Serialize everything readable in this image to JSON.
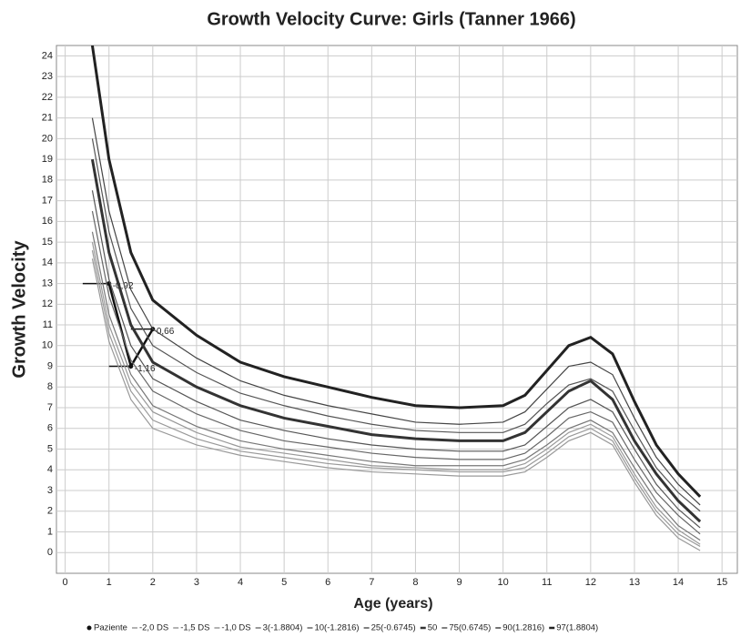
{
  "chart_data": {
    "type": "line",
    "title": "Growth Velocity Curve: Girls (Tanner 1966)",
    "x_label": "Age (years)",
    "y_label": "Growth Velocity",
    "xlim": [
      -0.2,
      15.35
    ],
    "ylim": [
      -1,
      24.5
    ],
    "xticks": [
      0,
      1,
      2,
      3,
      4,
      5,
      6,
      7,
      8,
      9,
      10,
      11,
      12,
      13,
      14,
      15
    ],
    "yticks": [
      0,
      1,
      2,
      3,
      4,
      5,
      6,
      7,
      8,
      9,
      10,
      11,
      12,
      13,
      14,
      15,
      16,
      17,
      18,
      19,
      20,
      21,
      22,
      23,
      24
    ],
    "grid": true,
    "x": [
      0.62,
      1,
      1.5,
      2,
      3,
      4,
      5,
      6,
      7,
      8,
      9,
      10,
      10.5,
      11,
      11.5,
      12,
      12.5,
      13,
      13.5,
      14,
      14.5
    ],
    "series": [
      {
        "name": "Paziente",
        "color": "#111",
        "width": 2.5,
        "x": [
          1.0,
          1.5,
          2.0
        ],
        "x_from": [
          0.4,
          1.0,
          1.5
        ],
        "values": [
          13,
          9,
          10.8
        ],
        "point_labels": [
          "-0,92",
          "-1,16",
          "0,66"
        ]
      },
      {
        "name": "-2,0 DS",
        "color": "#999",
        "width": 1.2,
        "values": [
          14.2,
          10.2,
          7.4,
          6,
          5.2,
          4.7,
          4.4,
          4.1,
          3.9,
          3.8,
          3.7,
          3.7,
          3.9,
          4.6,
          5.4,
          5.8,
          5.2,
          3.4,
          1.8,
          0.7,
          0.1
        ]
      },
      {
        "name": "-1,5 DS",
        "color": "#999",
        "width": 1.2,
        "values": [
          14.6,
          10.6,
          7.8,
          6.4,
          5.5,
          4.9,
          4.6,
          4.3,
          4.1,
          4,
          3.9,
          3.9,
          4.1,
          4.8,
          5.6,
          6.0,
          5.4,
          3.6,
          2,
          0.9,
          0.3
        ]
      },
      {
        "name": "-1,0 DS",
        "color": "#999",
        "width": 1.2,
        "values": [
          15,
          11,
          8.2,
          6.8,
          5.8,
          5.1,
          4.8,
          4.5,
          4.2,
          4.1,
          4,
          4,
          4.3,
          5,
          5.8,
          6.2,
          5.6,
          3.8,
          2.2,
          1.1,
          0.4
        ]
      },
      {
        "name": "3(-1.8804)",
        "color": "#777",
        "width": 1.2,
        "values": [
          15.5,
          11.5,
          8.6,
          7.1,
          6.1,
          5.4,
          5,
          4.7,
          4.4,
          4.2,
          4.2,
          4.2,
          4.5,
          5.2,
          6,
          6.4,
          5.8,
          4.1,
          2.5,
          1.3,
          0.6
        ]
      },
      {
        "name": "10(-1.2816)",
        "color": "#666",
        "width": 1.2,
        "values": [
          16.5,
          12.4,
          9.3,
          7.8,
          6.7,
          5.9,
          5.4,
          5.1,
          4.8,
          4.6,
          4.5,
          4.5,
          4.8,
          5.6,
          6.5,
          6.8,
          6.3,
          4.5,
          2.9,
          1.8,
          0.9
        ]
      },
      {
        "name": "25(-0.6745)",
        "color": "#555",
        "width": 1.2,
        "values": [
          17.5,
          13.2,
          10,
          8.4,
          7.3,
          6.4,
          5.9,
          5.5,
          5.2,
          5,
          4.9,
          4.9,
          5.2,
          6.1,
          7,
          7.4,
          6.8,
          5,
          3.3,
          2.1,
          1.2
        ]
      },
      {
        "name": "50",
        "color": "#333",
        "width": 3,
        "values": [
          19,
          14.5,
          11,
          9.2,
          8,
          7.1,
          6.5,
          6.1,
          5.7,
          5.5,
          5.4,
          5.4,
          5.8,
          6.8,
          7.8,
          8.3,
          7.4,
          5.4,
          3.8,
          2.5,
          1.5
        ]
      },
      {
        "name": "75(0.6745)",
        "color": "#555",
        "width": 1.2,
        "values": [
          20,
          15.5,
          11.8,
          10,
          8.7,
          7.7,
          7.1,
          6.6,
          6.2,
          5.9,
          5.8,
          5.8,
          6.2,
          7.2,
          8.1,
          8.4,
          7.8,
          5.9,
          4.1,
          2.9,
          2.0
        ]
      },
      {
        "name": "90(1.2816)",
        "color": "#444",
        "width": 1.2,
        "values": [
          21,
          16.5,
          12.7,
          10.8,
          9.4,
          8.3,
          7.6,
          7.1,
          6.7,
          6.3,
          6.2,
          6.3,
          6.8,
          7.9,
          9,
          9.2,
          8.6,
          6.5,
          4.6,
          3.3,
          2.3
        ]
      },
      {
        "name": "97(1.8804)",
        "color": "#222",
        "width": 3,
        "values": [
          24.5,
          19,
          14.5,
          12.2,
          10.5,
          9.2,
          8.5,
          8,
          7.5,
          7.1,
          7,
          7.1,
          7.6,
          8.8,
          10,
          10.4,
          9.6,
          7.3,
          5.2,
          3.8,
          2.7
        ]
      }
    ]
  }
}
